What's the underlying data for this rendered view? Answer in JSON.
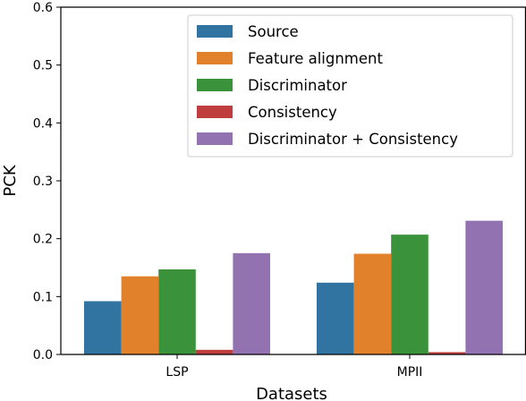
{
  "chart_data": {
    "type": "bar",
    "categories": [
      "LSP",
      "MPII"
    ],
    "series": [
      {
        "name": "Source",
        "color": "#3274a1",
        "values": [
          0.092,
          0.124
        ]
      },
      {
        "name": "Feature alignment",
        "color": "#e1812c",
        "values": [
          0.135,
          0.174
        ]
      },
      {
        "name": "Discriminator",
        "color": "#3a923a",
        "values": [
          0.147,
          0.207
        ]
      },
      {
        "name": "Consistency",
        "color": "#c03d3e",
        "values": [
          0.008,
          0.004
        ]
      },
      {
        "name": "Discriminator + Consistency",
        "color": "#9372b2",
        "values": [
          0.175,
          0.231
        ]
      }
    ],
    "xlabel": "Datasets",
    "ylabel": "PCK",
    "ylim": [
      0,
      0.6
    ],
    "yticks": [
      "0.0",
      "0.1",
      "0.2",
      "0.3",
      "0.4",
      "0.5",
      "0.6"
    ],
    "grid": false,
    "legend_position": "top-right"
  }
}
